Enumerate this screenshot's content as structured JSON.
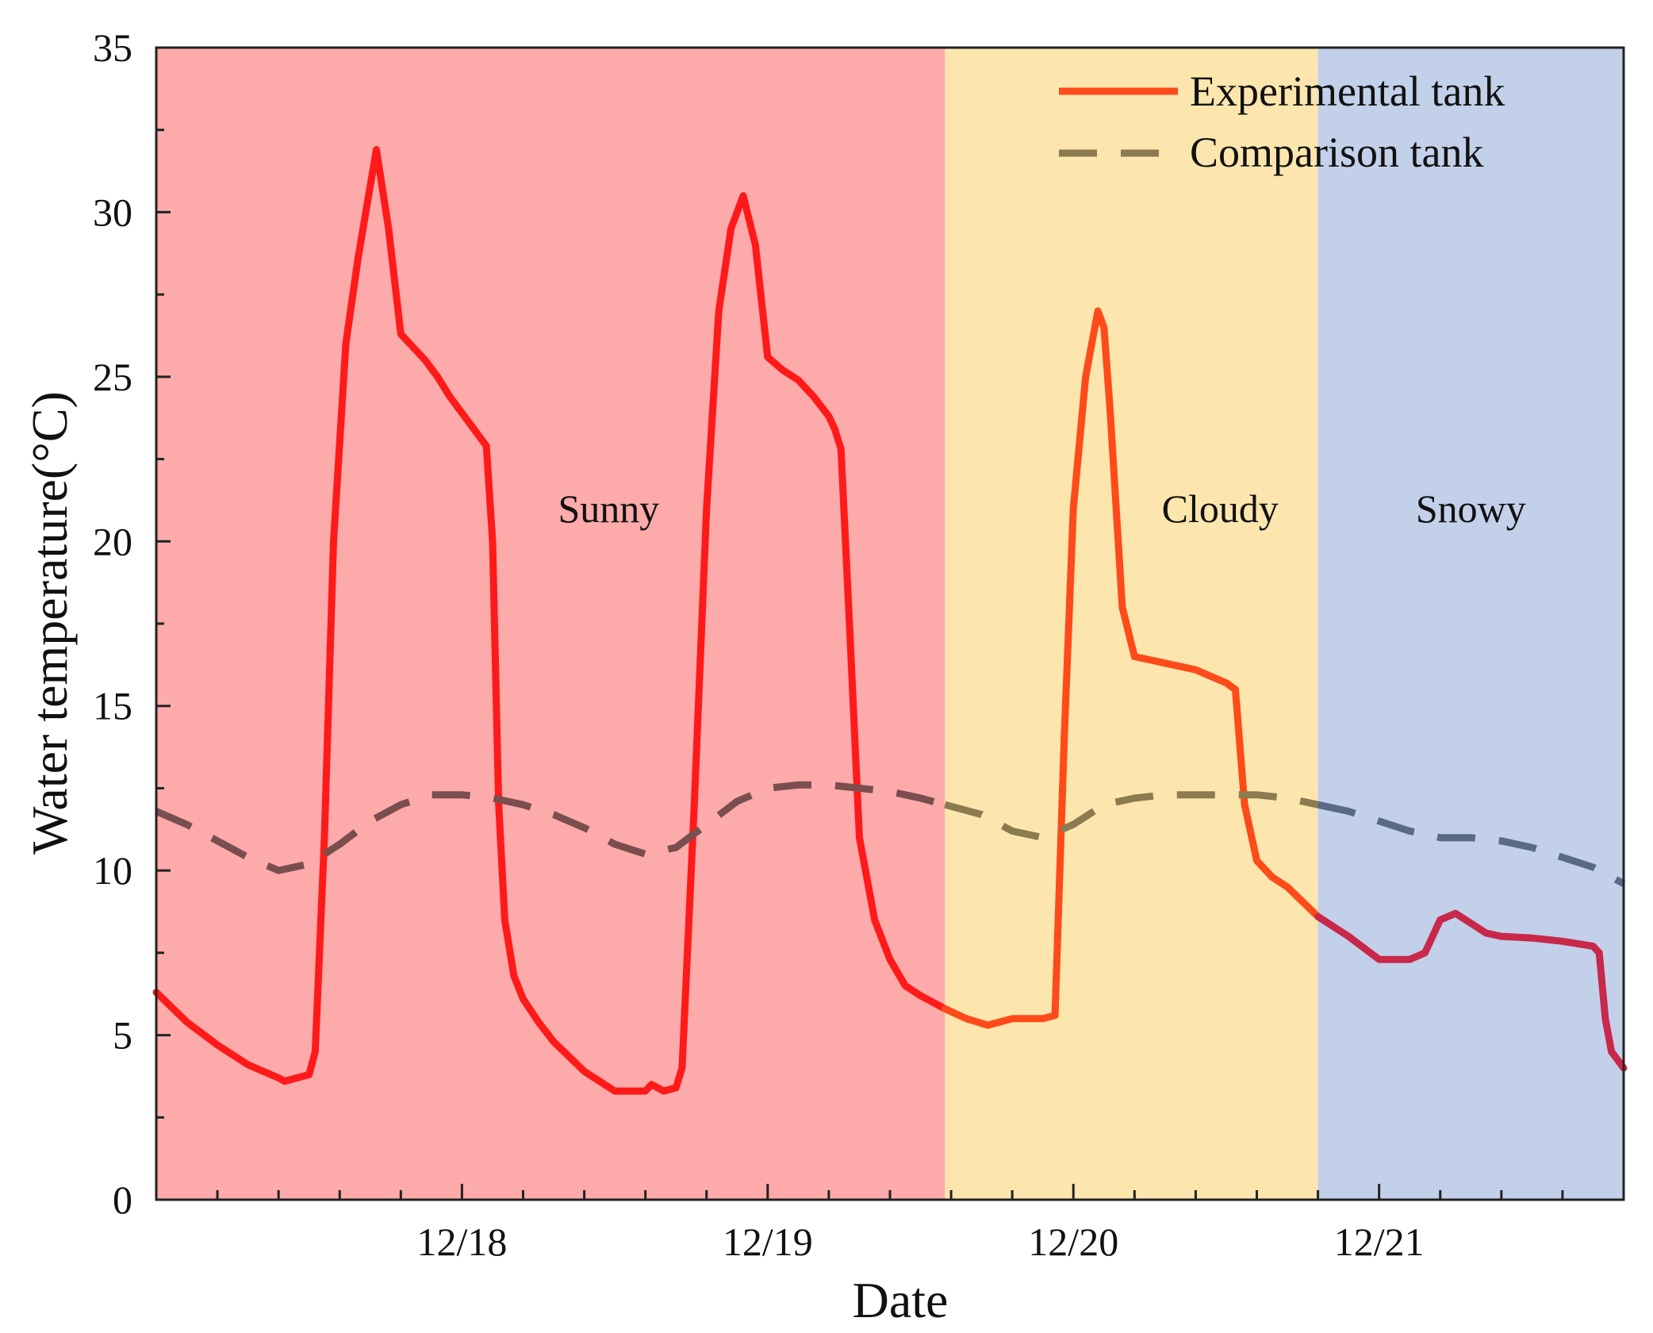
{
  "chart_data": {
    "type": "line",
    "title": "",
    "xlabel": "Date",
    "ylabel": "Water temperature(°C)",
    "xlim": [
      17.0,
      21.8
    ],
    "ylim": [
      0,
      35
    ],
    "yticks": [
      0,
      5,
      10,
      15,
      20,
      25,
      30,
      35
    ],
    "xticks": [
      {
        "value": 18,
        "label": "12/18"
      },
      {
        "value": 19,
        "label": "12/19"
      },
      {
        "value": 20,
        "label": "12/20"
      },
      {
        "value": 21,
        "label": "12/21"
      }
    ],
    "x_minor_step": 0.2,
    "regions": [
      {
        "name": "Sunny",
        "start": 17.0,
        "end": 19.58,
        "color": "#fcaaaa",
        "label_x": 18.48,
        "label_y": 21.0
      },
      {
        "name": "Cloudy",
        "start": 19.58,
        "end": 20.8,
        "color": "#fde6ae",
        "label_x": 20.48,
        "label_y": 21.0
      },
      {
        "name": "Snowy",
        "start": 20.8,
        "end": 21.8,
        "color": "#c3d0ea",
        "label_x": 21.3,
        "label_y": 21.0
      }
    ],
    "legend": {
      "position": "top-right"
    },
    "series": [
      {
        "name": "Experimental tank",
        "style": "solid",
        "color": "#ff1a1a",
        "segment_colors": [
          {
            "until": 19.58,
            "color": "#ff1a1a"
          },
          {
            "until": 20.8,
            "color": "#ff4a1a"
          },
          {
            "until": 21.8,
            "color": "#c8284a"
          }
        ],
        "x": [
          17.0,
          17.1,
          17.2,
          17.3,
          17.4,
          17.42,
          17.46,
          17.5,
          17.52,
          17.55,
          17.58,
          17.62,
          17.66,
          17.7,
          17.72,
          17.76,
          17.8,
          17.84,
          17.88,
          17.92,
          17.96,
          18.0,
          18.04,
          18.08,
          18.1,
          18.12,
          18.14,
          18.17,
          18.2,
          18.25,
          18.3,
          18.4,
          18.5,
          18.6,
          18.62,
          18.66,
          18.7,
          18.72,
          18.76,
          18.8,
          18.84,
          18.88,
          18.92,
          18.96,
          19.0,
          19.05,
          19.1,
          19.15,
          19.2,
          19.22,
          19.24,
          19.27,
          19.3,
          19.35,
          19.4,
          19.45,
          19.5,
          19.58,
          19.65,
          19.72,
          19.8,
          19.9,
          19.94,
          19.97,
          20.0,
          20.04,
          20.08,
          20.1,
          20.12,
          20.16,
          20.2,
          20.25,
          20.3,
          20.4,
          20.5,
          20.53,
          20.56,
          20.6,
          20.65,
          20.7,
          20.8,
          20.9,
          21.0,
          21.1,
          21.15,
          21.2,
          21.25,
          21.3,
          21.35,
          21.4,
          21.5,
          21.6,
          21.7,
          21.72,
          21.74,
          21.76,
          21.8
        ],
        "values": [
          6.3,
          5.4,
          4.7,
          4.1,
          3.7,
          3.6,
          3.7,
          3.8,
          4.5,
          11.0,
          20.0,
          26.0,
          28.6,
          30.8,
          31.9,
          29.5,
          26.3,
          25.9,
          25.5,
          25.0,
          24.4,
          23.9,
          23.4,
          22.9,
          20.0,
          12.0,
          8.5,
          6.8,
          6.1,
          5.4,
          4.8,
          3.9,
          3.3,
          3.3,
          3.5,
          3.3,
          3.4,
          4.0,
          12.0,
          21.0,
          27.0,
          29.5,
          30.5,
          29.0,
          25.6,
          25.2,
          24.9,
          24.4,
          23.8,
          23.4,
          22.8,
          17.0,
          11.0,
          8.5,
          7.3,
          6.5,
          6.2,
          5.8,
          5.5,
          5.3,
          5.5,
          5.5,
          5.6,
          14.0,
          21.0,
          25.0,
          27.0,
          26.5,
          24.0,
          18.0,
          16.5,
          16.4,
          16.3,
          16.1,
          15.7,
          15.5,
          12.0,
          10.3,
          9.8,
          9.5,
          8.6,
          8.0,
          7.3,
          7.3,
          7.5,
          8.5,
          8.7,
          8.4,
          8.1,
          8.0,
          7.95,
          7.85,
          7.7,
          7.5,
          5.5,
          4.5,
          4.0
        ]
      },
      {
        "name": "Comparison tank",
        "style": "dashed",
        "color": "#8c7a50",
        "segment_colors": [
          {
            "until": 19.58,
            "color": "#7a4e4e"
          },
          {
            "until": 20.8,
            "color": "#8c7a50"
          },
          {
            "until": 21.8,
            "color": "#5a6a86"
          }
        ],
        "x": [
          17.0,
          17.1,
          17.2,
          17.3,
          17.4,
          17.5,
          17.6,
          17.7,
          17.8,
          17.9,
          18.0,
          18.1,
          18.2,
          18.3,
          18.4,
          18.5,
          18.6,
          18.7,
          18.8,
          18.9,
          19.0,
          19.1,
          19.2,
          19.3,
          19.4,
          19.5,
          19.58,
          19.7,
          19.8,
          19.9,
          20.0,
          20.1,
          20.2,
          20.3,
          20.4,
          20.5,
          20.6,
          20.7,
          20.8,
          20.9,
          21.0,
          21.1,
          21.2,
          21.3,
          21.4,
          21.5,
          21.6,
          21.7,
          21.8
        ],
        "values": [
          11.8,
          11.4,
          10.9,
          10.4,
          10.0,
          10.2,
          10.8,
          11.5,
          12.0,
          12.3,
          12.3,
          12.2,
          12.0,
          11.7,
          11.3,
          10.8,
          10.5,
          10.7,
          11.4,
          12.1,
          12.5,
          12.6,
          12.6,
          12.5,
          12.4,
          12.2,
          12.0,
          11.7,
          11.2,
          11.0,
          11.4,
          12.0,
          12.2,
          12.3,
          12.3,
          12.3,
          12.3,
          12.2,
          12.0,
          11.8,
          11.5,
          11.2,
          11.0,
          11.0,
          10.9,
          10.7,
          10.4,
          10.1,
          9.6
        ]
      }
    ]
  }
}
